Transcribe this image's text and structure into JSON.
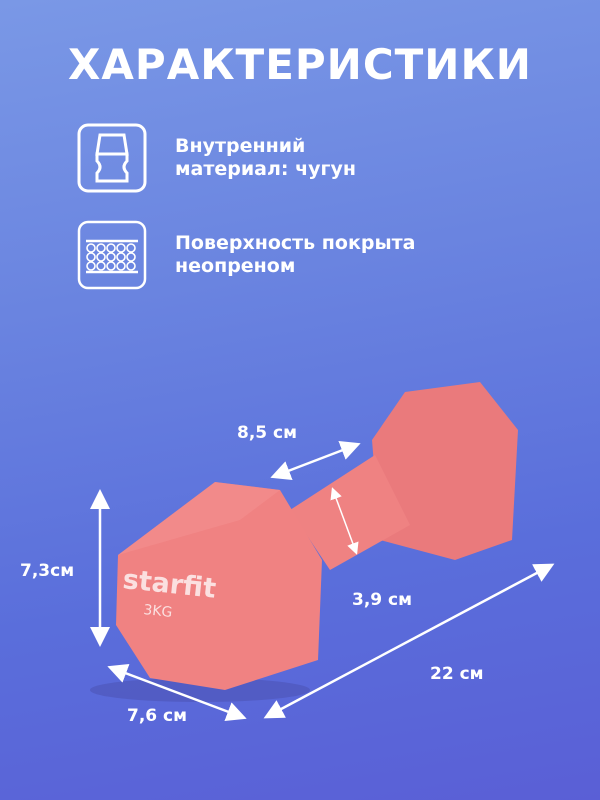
{
  "title": "ХАРАКТЕРИСТИКИ",
  "features": [
    {
      "icon": "dumbbell-material-icon",
      "line1": "Внутренний",
      "line2": "материал: чугун"
    },
    {
      "icon": "neoprene-surface-icon",
      "line1": "Поверхность покрыта",
      "line2": "неопреном"
    }
  ],
  "product": {
    "brand": "starfit",
    "weight": "3KG",
    "color": "#f27f7f"
  },
  "dimensions": {
    "handle_length": "8,5 см",
    "handle_diameter": "3,9 см",
    "height": "7,3см",
    "width": "7,6 см",
    "length": "22 см"
  }
}
